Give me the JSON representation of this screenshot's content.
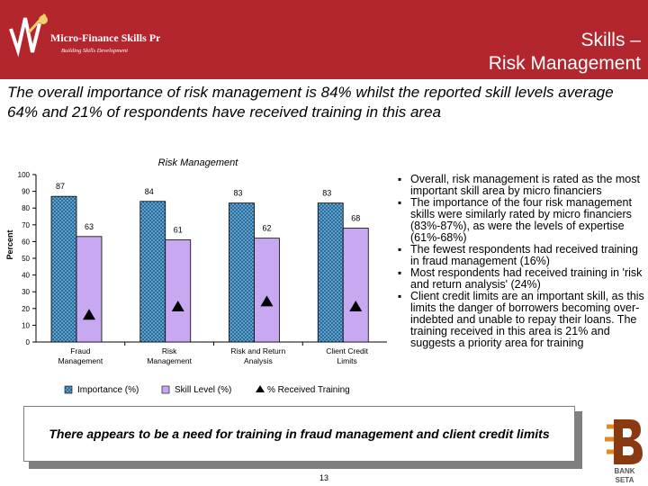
{
  "header": {
    "logo_text": "Micro-Finance Skills Project",
    "logo_tagline": "Building Skills Development",
    "title_line1": "Skills –",
    "title_line2": "Risk Management"
  },
  "subtitle": "The overall importance of risk management is 84% whilst the reported skill levels average 64% and 21% of respondents have received training in this area",
  "colors": {
    "header_bg": "#b3262e",
    "importance": "#5f9fcc",
    "skill": "#c9a8f2"
  },
  "chart_data": {
    "type": "bar",
    "title": "Risk Management",
    "ylabel": "Percent",
    "ylim": [
      0,
      100
    ],
    "yticks": [
      0,
      10,
      20,
      30,
      40,
      50,
      60,
      70,
      80,
      90,
      100
    ],
    "grid": false,
    "legend_position": "bottom",
    "categories": [
      "Fraud Management",
      "Risk Management",
      "Risk and Return Analysis",
      "Client Credit Limits"
    ],
    "category_lines": [
      [
        "Fraud",
        "Management"
      ],
      [
        "Risk",
        "Management"
      ],
      [
        "Risk and Return",
        "Analysis"
      ],
      [
        "Client Credit",
        "Limits"
      ]
    ],
    "series": [
      {
        "name": "Importance (%)",
        "type": "bar",
        "values": [
          87,
          84,
          83,
          83
        ]
      },
      {
        "name": "Skill Level (%)",
        "type": "bar",
        "values": [
          63,
          61,
          62,
          68
        ]
      },
      {
        "name": "% Received Training",
        "type": "marker",
        "values": [
          16,
          21,
          24,
          21
        ]
      }
    ]
  },
  "bullets": [
    "Overall, risk management is rated as the most important skill area by micro financiers",
    "The importance of the four risk management skills were similarly rated by micro financiers (83%-87%), as were the levels of expertise (61%-68%)",
    "The fewest respondents had received training in fraud management (16%)",
    "Most respondents had received training in 'risk and return analysis' (24%)",
    "Client credit limits are an important skill, as this limits the danger of borrowers becoming over-indebted and unable to repay their loans. The training received in this area is 21% and suggests a priority area for training"
  ],
  "callout": "There appears to be a need for training in fraud management and client credit limits",
  "page_number": "13",
  "bank_logo": {
    "line1": "BANK",
    "line2": "SETA"
  }
}
